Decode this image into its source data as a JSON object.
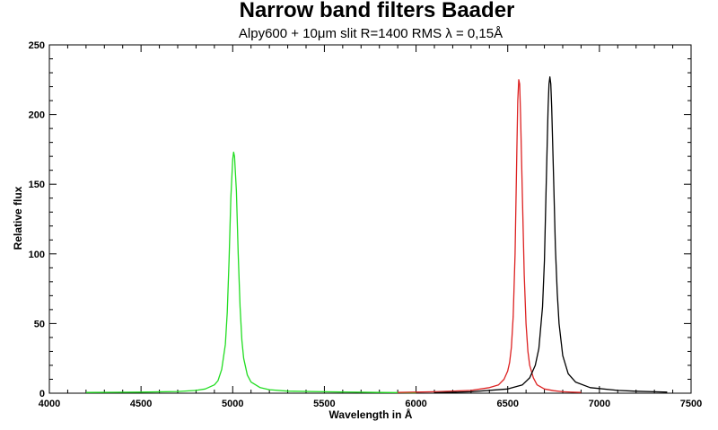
{
  "chart_data": {
    "type": "line",
    "title": "Narrow band filters Baader",
    "subtitle": "Alpy600 + 10μm slit R=1400  RMS λ = 0,15Å",
    "xlabel": "Wavelength in Å",
    "ylabel": "Relative flux",
    "xlim": [
      4000,
      7500
    ],
    "ylim": [
      0,
      250
    ],
    "xticks": [
      4000,
      4500,
      5000,
      5500,
      6000,
      6500,
      7000,
      7500
    ],
    "yticks": [
      0,
      50,
      100,
      150,
      200,
      250
    ],
    "grid": false,
    "legend": "none",
    "series": [
      {
        "color": "#22dd22",
        "x": [
          4200,
          4500,
          4700,
          4800,
          4850,
          4900,
          4920,
          4940,
          4960,
          4970,
          4980,
          4990,
          5000,
          5005,
          5010,
          5020,
          5030,
          5040,
          5050,
          5060,
          5080,
          5100,
          5150,
          5200,
          5300,
          5500,
          5800,
          6000
        ],
        "y": [
          0.5,
          0.8,
          1.2,
          2,
          3,
          6,
          9,
          17,
          35,
          58,
          95,
          140,
          168,
          173,
          170,
          145,
          100,
          62,
          38,
          25,
          13,
          8,
          4,
          2.5,
          1.5,
          1,
          0.5,
          0.3
        ]
      },
      {
        "color": "#dd2222",
        "x": [
          5900,
          6100,
          6300,
          6400,
          6450,
          6480,
          6500,
          6510,
          6520,
          6530,
          6540,
          6550,
          6555,
          6560,
          6565,
          6570,
          6580,
          6590,
          6600,
          6610,
          6620,
          6640,
          6660,
          6700,
          6750,
          6800,
          6900
        ],
        "y": [
          0.5,
          1,
          2,
          4,
          6,
          10,
          16,
          22,
          33,
          55,
          100,
          175,
          210,
          225,
          222,
          200,
          140,
          85,
          50,
          30,
          20,
          11,
          6,
          3,
          1.8,
          1,
          0.5
        ]
      },
      {
        "color": "#000000",
        "x": [
          6100,
          6300,
          6500,
          6580,
          6620,
          6650,
          6670,
          6690,
          6700,
          6710,
          6720,
          6725,
          6730,
          6735,
          6740,
          6750,
          6760,
          6770,
          6780,
          6800,
          6830,
          6870,
          6950,
          7100,
          7200,
          7300,
          7370
        ],
        "y": [
          0.3,
          1,
          3,
          6,
          11,
          20,
          32,
          62,
          95,
          150,
          205,
          222,
          227,
          222,
          205,
          155,
          105,
          72,
          50,
          27,
          14,
          8,
          4,
          2,
          1.4,
          1,
          0.8
        ]
      }
    ]
  }
}
